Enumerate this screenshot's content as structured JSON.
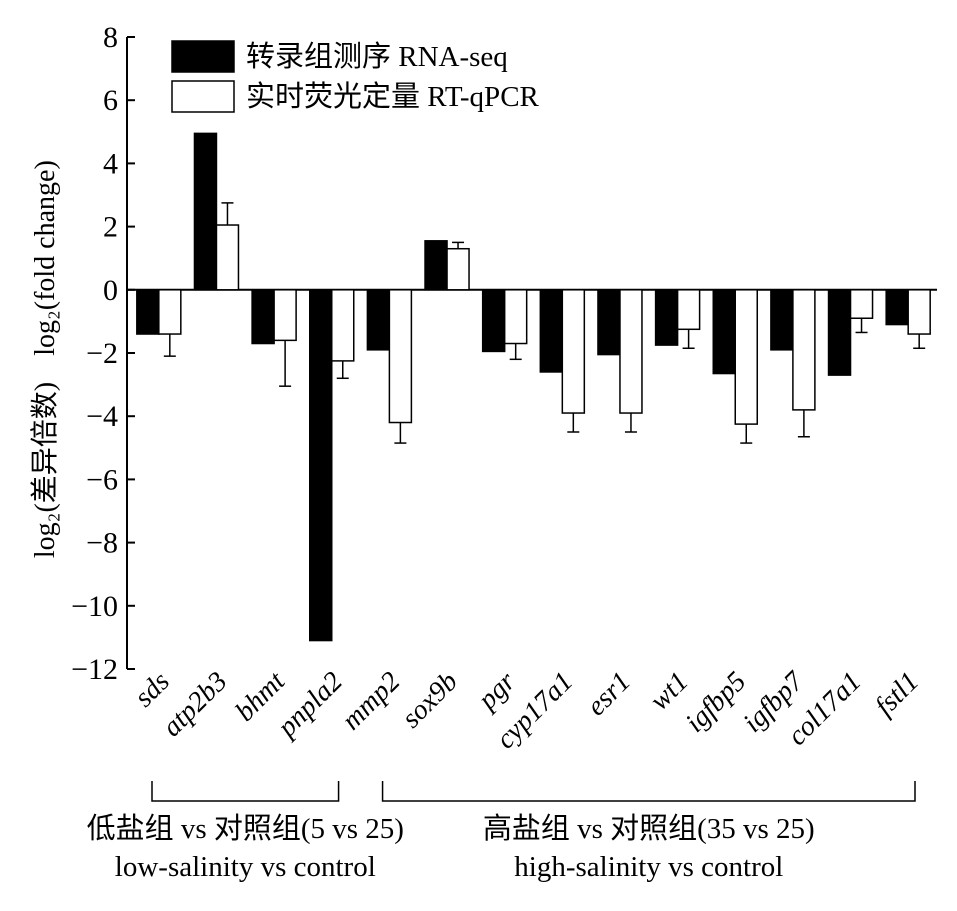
{
  "chart_data": {
    "type": "bar",
    "categories": [
      "sds",
      "atp2b3",
      "bhmt",
      "pnpla2",
      "mmp2",
      "sox9b",
      "pgr",
      "cyp17a1",
      "esr1",
      "wt1",
      "igfbp5",
      "igfbp7",
      "col17a1",
      "fstl1"
    ],
    "series": [
      {
        "name": "转录组测序 RNA-seq",
        "values": [
          -1.4,
          4.95,
          -1.7,
          -11.1,
          -1.9,
          1.55,
          -1.95,
          -2.6,
          -2.05,
          -1.75,
          -2.65,
          -1.9,
          -2.7,
          -1.1
        ],
        "errors": [
          0,
          0,
          0,
          0,
          0,
          0,
          0,
          0,
          0,
          0,
          0,
          0,
          0,
          0
        ]
      },
      {
        "name": "实时荧光定量 RT-qPCR",
        "values": [
          -1.4,
          2.05,
          -1.6,
          -2.25,
          -4.2,
          1.3,
          -1.7,
          -3.9,
          -3.9,
          -1.25,
          -4.25,
          -3.8,
          -0.9,
          -1.4
        ],
        "errors": [
          0.7,
          0.7,
          1.45,
          0.55,
          0.65,
          0.2,
          0.5,
          0.6,
          0.6,
          0.6,
          0.6,
          0.85,
          0.45,
          0.45
        ]
      }
    ],
    "ylim": [
      -12,
      8
    ],
    "yticks": [
      "−12",
      "−10",
      "−8",
      "−6",
      "−4",
      "−2",
      "0",
      "2",
      "4",
      "6",
      "8"
    ],
    "ylabel_top": "log₂(fold change)",
    "ylabel_bottom": "log₂(差异倍数)",
    "legend_position": "top-left",
    "grid": false,
    "colors": {
      "rna_seq": "#000000",
      "rt_qpcr": "#ffffff",
      "axis": "#000000"
    },
    "groups": [
      {
        "label_cn": "低盐组 vs 对照组(5 vs 25)",
        "label_en": "low-salinity vs control",
        "first": 0,
        "last": 3
      },
      {
        "label_cn": "高盐组 vs 对照组(35 vs 25)",
        "label_en": "high-salinity vs control",
        "first": 4,
        "last": 13
      }
    ]
  }
}
